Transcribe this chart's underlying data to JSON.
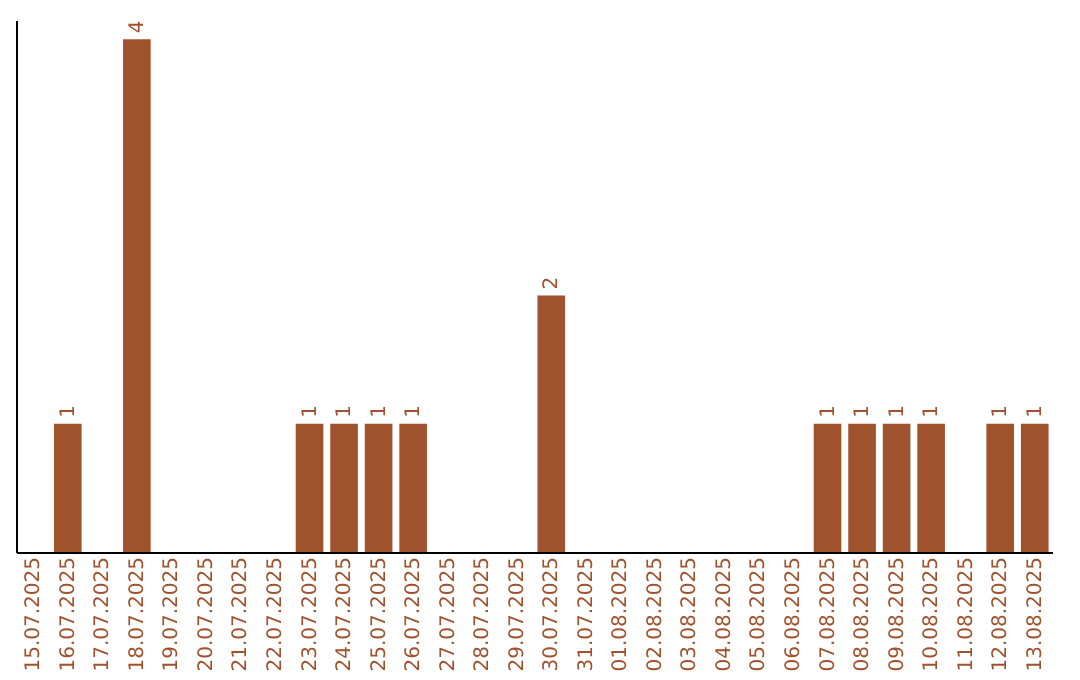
{
  "chart_data": {
    "type": "bar",
    "categories": [
      "15.07.2025",
      "16.07.2025",
      "17.07.2025",
      "18.07.2025",
      "19.07.2025",
      "20.07.2025",
      "21.07.2025",
      "22.07.2025",
      "23.07.2025",
      "24.07.2025",
      "25.07.2025",
      "26.07.2025",
      "27.07.2025",
      "28.07.2025",
      "29.07.2025",
      "30.07.2025",
      "31.07.2025",
      "01.08.2025",
      "02.08.2025",
      "03.08.2025",
      "04.08.2025",
      "05.08.2025",
      "06.08.2025",
      "07.08.2025",
      "08.08.2025",
      "09.08.2025",
      "10.08.2025",
      "11.08.2025",
      "12.08.2025",
      "13.08.2025"
    ],
    "values": [
      null,
      1,
      null,
      4,
      null,
      null,
      null,
      null,
      1,
      1,
      1,
      1,
      null,
      null,
      null,
      2,
      null,
      null,
      null,
      null,
      null,
      null,
      null,
      1,
      1,
      1,
      1,
      null,
      1,
      1
    ],
    "color": "#a0522d",
    "ylim": [
      0,
      4.15
    ],
    "data_labels": true,
    "grid": false,
    "tick_labels": "x"
  }
}
